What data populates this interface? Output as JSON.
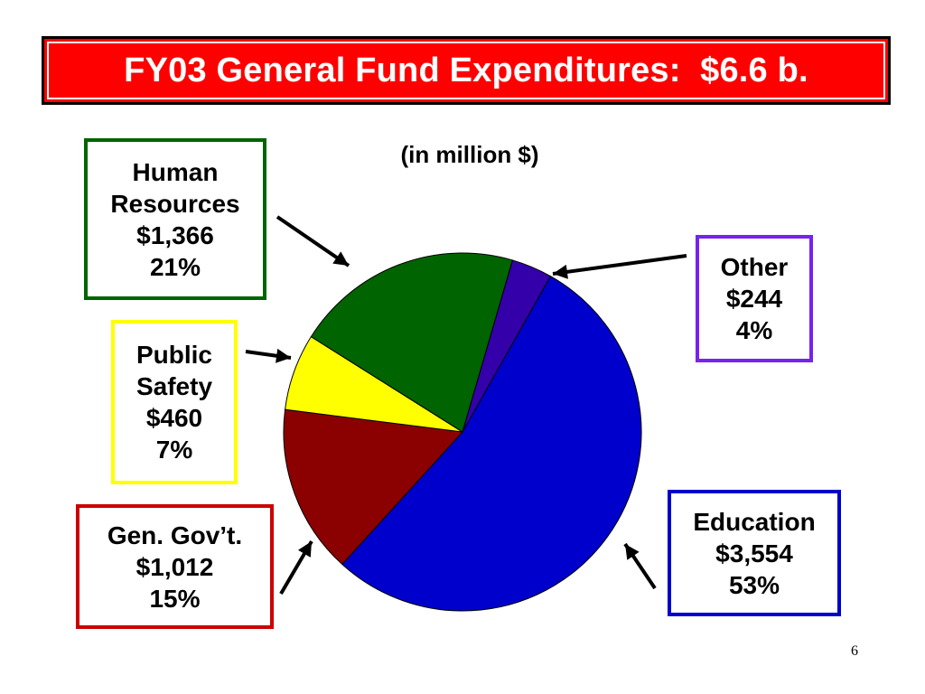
{
  "title": "FY03 General Fund Expenditures:  $6.6 b.",
  "page_number": "6",
  "colors": {
    "title_background": "#ff0000",
    "title_text": "#ffffff"
  },
  "chart_data": {
    "type": "pie",
    "title": "FY03 General Fund Expenditures:  $6.6 b.",
    "subtitle": "(in million $)",
    "unit": "million $",
    "slices": [
      {
        "name": "Education",
        "value": 3554,
        "percent_label": "53%",
        "value_label": "$3,554",
        "color": "#0000cc",
        "border_color": "#0000cc"
      },
      {
        "name": "Gen. Gov’t.",
        "value": 1012,
        "percent_label": "15%",
        "value_label": "$1,012",
        "color": "#8b0000",
        "border_color": "#cc0000"
      },
      {
        "name": "Public Safety",
        "value": 460,
        "percent_label": "7%",
        "value_label": "$460",
        "color": "#ffff00",
        "border_color": "#ffff00"
      },
      {
        "name": "Human Resources",
        "value": 1366,
        "percent_label": "21%",
        "value_label": "$1,366",
        "color": "#006400",
        "border_color": "#006400"
      },
      {
        "name": "Other",
        "value": 244,
        "percent_label": "4%",
        "value_label": "$244",
        "color": "#3300aa",
        "border_color": "#7722ee"
      }
    ],
    "labels": {
      "human_resources": {
        "line1": "Human",
        "line2": "Resources",
        "value": "$1,366",
        "percent": "21%"
      },
      "public_safety": {
        "line1": "Public",
        "line2": "Safety",
        "value": "$460",
        "percent": "7%"
      },
      "gen_gov": {
        "line1": "Gen. Gov’t.",
        "value": "$1,012",
        "percent": "15%"
      },
      "other": {
        "line1": "Other",
        "value": "$244",
        "percent": "4%"
      },
      "education": {
        "line1": "Education",
        "value": "$3,554",
        "percent": "53%"
      }
    },
    "legend": "none"
  }
}
